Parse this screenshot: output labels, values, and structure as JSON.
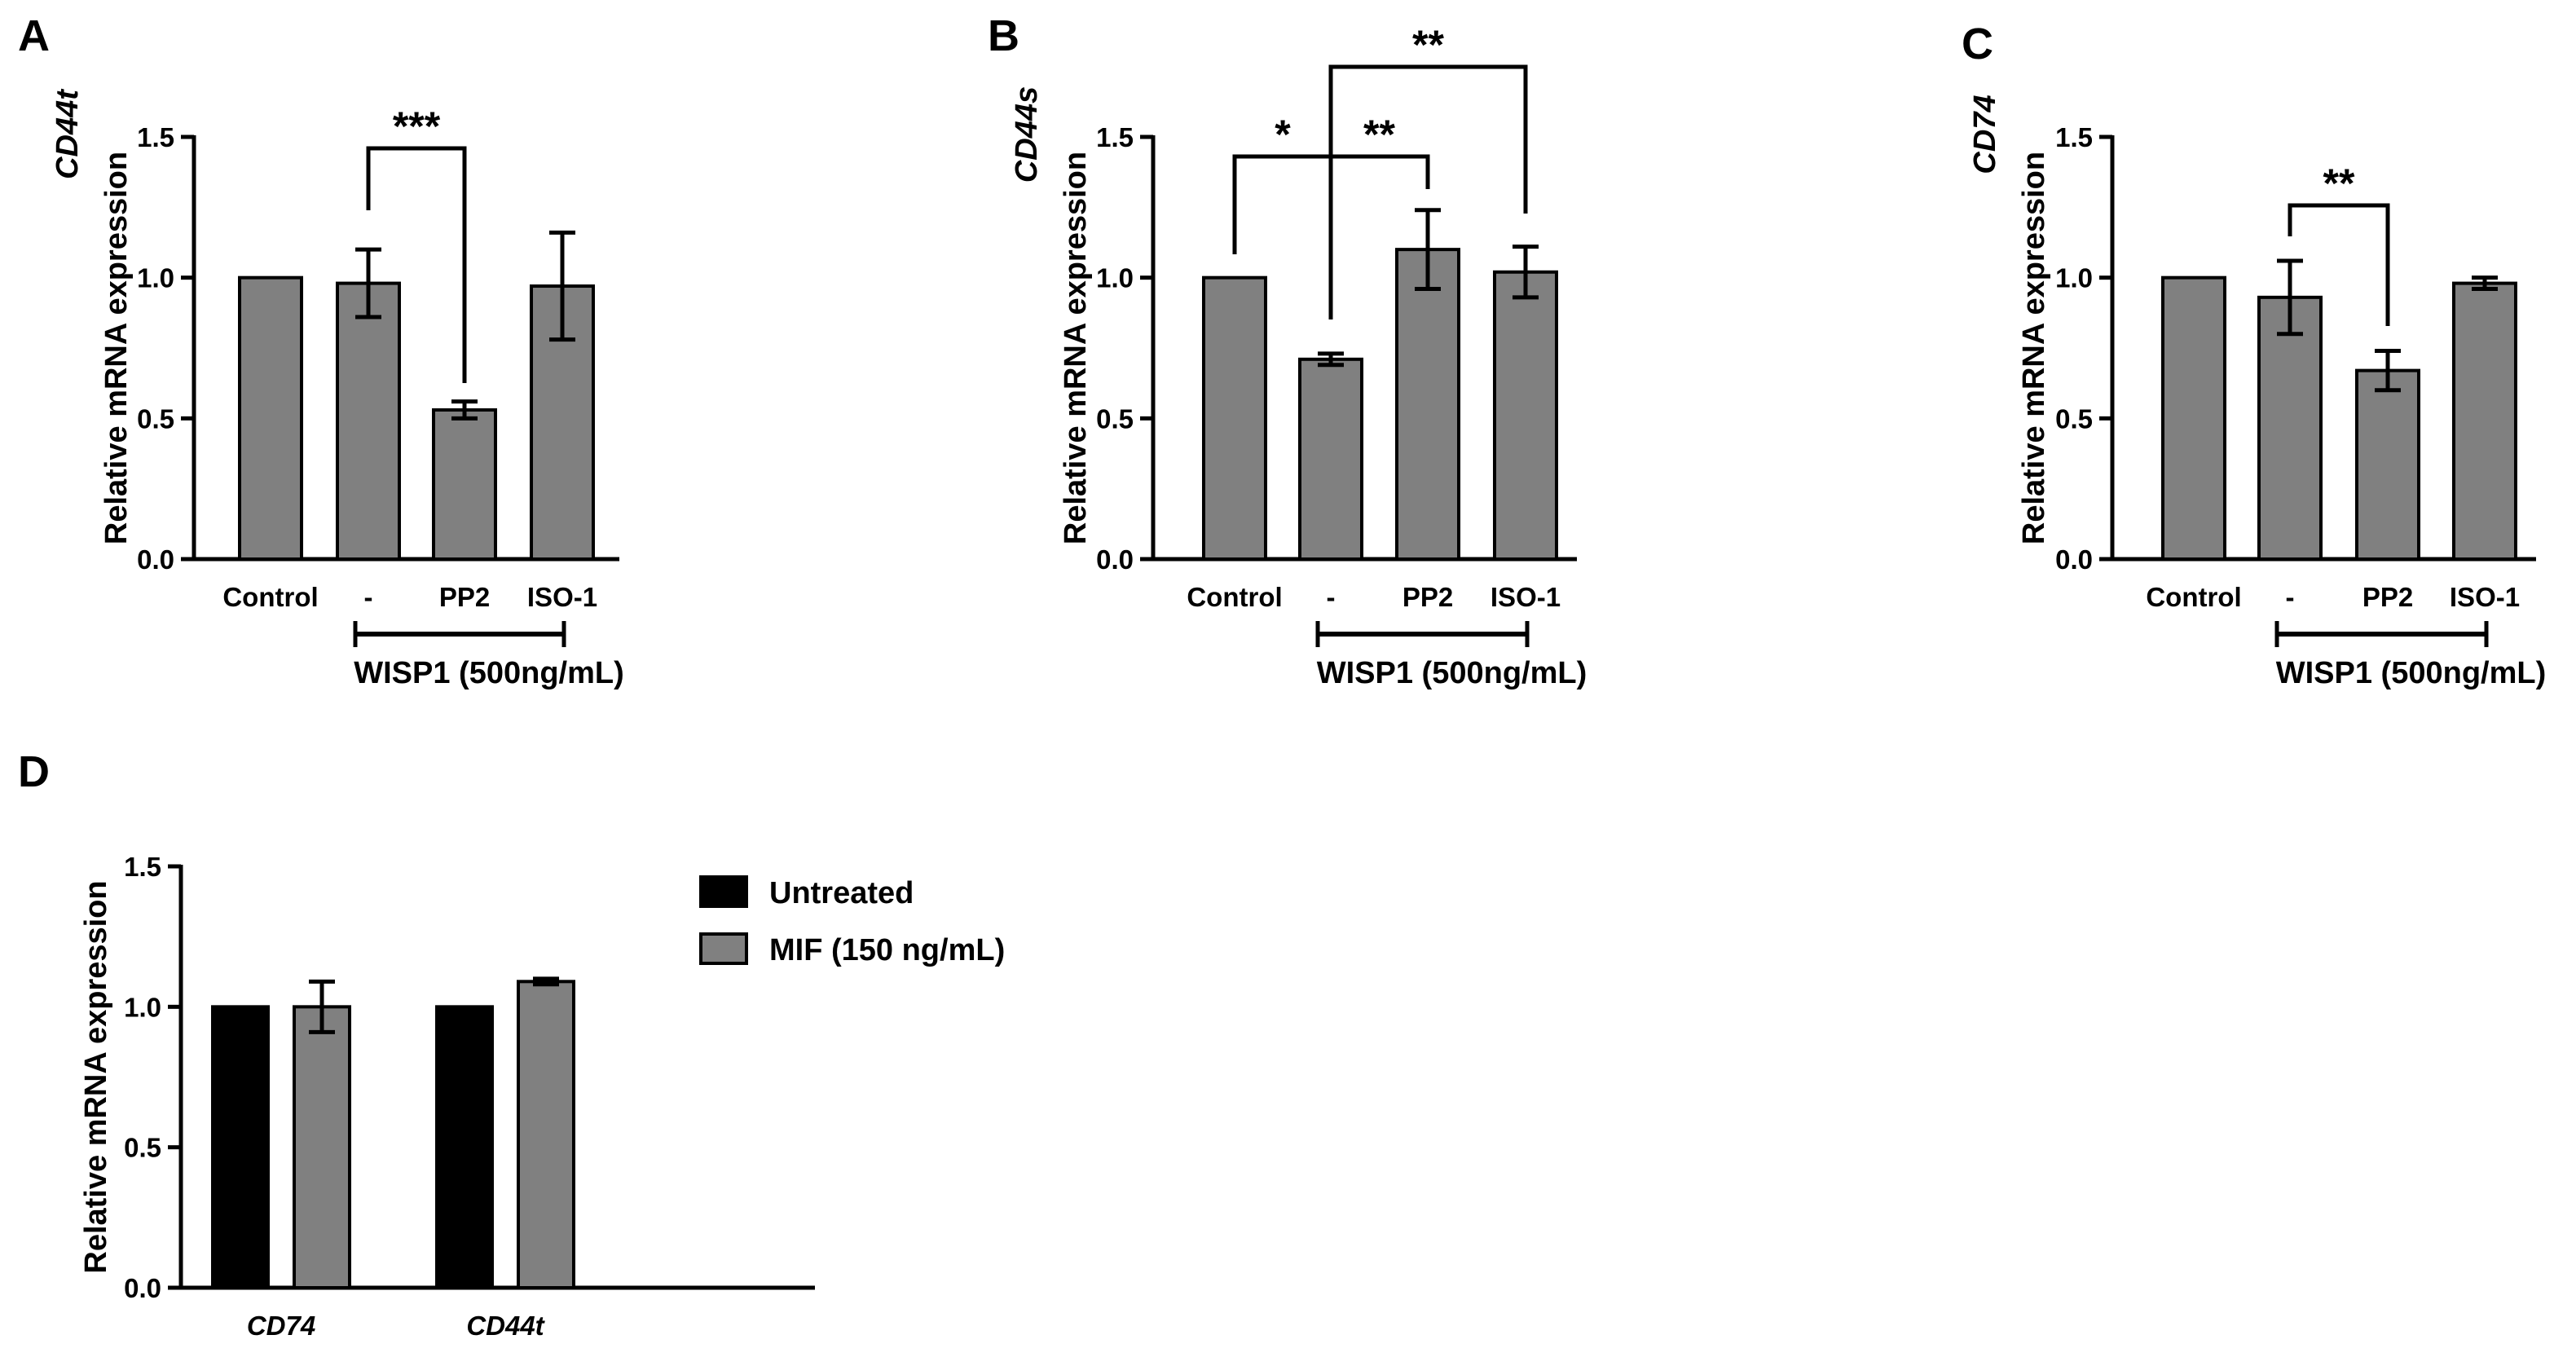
{
  "chart_data": [
    {
      "panel": "A",
      "type": "bar",
      "ylabel_italic": "CD44t",
      "ylabel": "Relative mRNA expression",
      "ylim": [
        0,
        1.5
      ],
      "yticks": [
        "0.0",
        "0.5",
        "1.0",
        "1.5"
      ],
      "categories": [
        "Control",
        "-",
        "PP2",
        "ISO-1"
      ],
      "values": [
        1.0,
        0.98,
        0.53,
        0.97
      ],
      "errors": [
        0,
        0.12,
        0.03,
        0.19
      ],
      "bar_color": "#808080",
      "group_label": "WISP1 (500ng/mL)",
      "significance": [
        {
          "from": 1,
          "to": 2,
          "label": "***"
        }
      ]
    },
    {
      "panel": "B",
      "type": "bar",
      "ylabel_italic": "CD44s",
      "ylabel": "Relative mRNA expression",
      "ylim": [
        0,
        1.5
      ],
      "yticks": [
        "0.0",
        "0.5",
        "1.0",
        "1.5"
      ],
      "categories": [
        "Control",
        "-",
        "PP2",
        "ISO-1"
      ],
      "values": [
        1.0,
        0.71,
        1.1,
        1.02
      ],
      "errors": [
        0,
        0.02,
        0.14,
        0.09
      ],
      "bar_color": "#808080",
      "group_label": "WISP1 (500ng/mL)",
      "significance": [
        {
          "from": 0,
          "to": 1,
          "label": "*"
        },
        {
          "from": 1,
          "to": 2,
          "label": "**"
        },
        {
          "from": 1,
          "to": 3,
          "label": "**"
        }
      ]
    },
    {
      "panel": "C",
      "type": "bar",
      "ylabel_italic": "CD74",
      "ylabel": "Relative mRNA expression",
      "ylim": [
        0,
        1.5
      ],
      "yticks": [
        "0.0",
        "0.5",
        "1.0",
        "1.5"
      ],
      "categories": [
        "Control",
        "-",
        "PP2",
        "ISO-1"
      ],
      "values": [
        1.0,
        0.93,
        0.67,
        0.98
      ],
      "errors": [
        0,
        0.13,
        0.07,
        0.02
      ],
      "bar_color": "#808080",
      "group_label": "WISP1 (500ng/mL)",
      "significance": [
        {
          "from": 1,
          "to": 2,
          "label": "**"
        }
      ]
    },
    {
      "panel": "D",
      "type": "bar",
      "ylabel": "Relative mRNA expression",
      "ylim": [
        0,
        1.5
      ],
      "yticks": [
        "0.0",
        "0.5",
        "1.0",
        "1.5"
      ],
      "categories": [
        "CD74",
        "CD44t"
      ],
      "series": [
        {
          "name": "Untreated",
          "color": "#000000",
          "values": [
            1.0,
            1.0
          ],
          "errors": [
            0,
            0
          ]
        },
        {
          "name": "MIF (150 ng/mL)",
          "color": "#808080",
          "values": [
            1.0,
            1.09
          ],
          "errors": [
            0.09,
            0.01
          ]
        }
      ],
      "legend": "right"
    }
  ]
}
